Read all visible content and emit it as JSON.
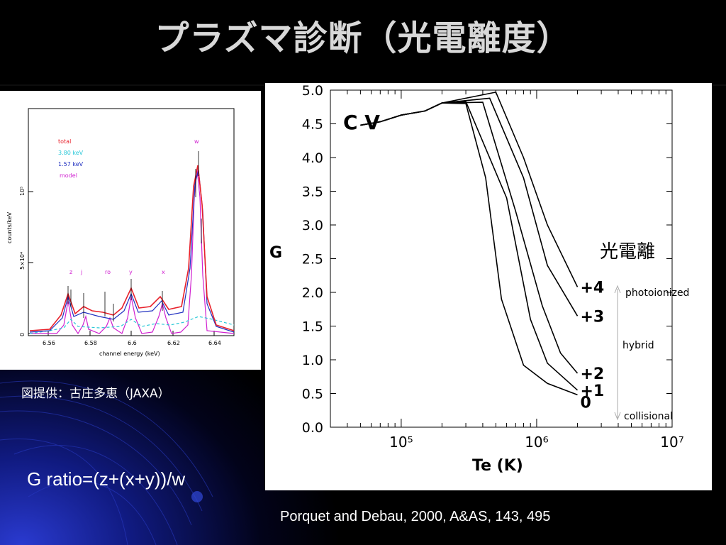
{
  "slide": {
    "title": "プラズマ診断（光電離度）",
    "credit": "図提供：古庄多恵（JAXA）",
    "formula": "G ratio=(z+(x+y))/w",
    "reference": "Porquet and Debau, 2000, A&AS, 143, 495",
    "colors": {
      "background": "#000000",
      "accent_blue": "#1e2db4",
      "title": "#d8d8d8"
    }
  },
  "left_figure": {
    "ylabel": "counts/keV",
    "xlabel": "channel energy (keV)",
    "xticks": [
      "6.56",
      "6.58",
      "6.6",
      "6.62",
      "6.64"
    ],
    "yticks": [
      "0",
      "5×10⁴",
      "10⁵"
    ],
    "legend": [
      {
        "label": "total",
        "color": "#e8202a"
      },
      {
        "label": "3.80 keV",
        "color": "#2ac8d8"
      },
      {
        "label": "1.57 keV",
        "color": "#2030c0"
      },
      {
        "label": "model",
        "color": "#d020d0"
      }
    ],
    "line_labels": [
      "z",
      "j",
      "ro",
      "y",
      "x",
      "w"
    ]
  },
  "chart_data": {
    "type": "line",
    "title": "C V",
    "xlabel": "Te (K)",
    "ylabel": "G",
    "x_scale": "log",
    "xlim": [
      30000,
      10000000
    ],
    "ylim": [
      0,
      5
    ],
    "x_tick_labels": [
      "10⁵",
      "10⁶",
      "10⁷"
    ],
    "y_tick_labels": [
      "0.0",
      "0.5",
      "1.0",
      "1.5",
      "2.0",
      "2.5",
      "3.0",
      "3.5",
      "4.0",
      "4.5",
      "5.0"
    ],
    "series": [
      {
        "name": "0",
        "points": [
          [
            50000,
            4.48
          ],
          [
            70000,
            4.53
          ],
          [
            100000,
            4.63
          ],
          [
            150000,
            4.69
          ],
          [
            200000,
            4.81
          ],
          [
            300000,
            4.8
          ],
          [
            420000,
            3.7
          ],
          [
            550000,
            1.9
          ],
          [
            800000,
            0.92
          ],
          [
            1200000,
            0.65
          ],
          [
            2000000,
            0.48
          ]
        ]
      },
      {
        "name": "+1",
        "points": [
          [
            50000,
            4.48
          ],
          [
            70000,
            4.53
          ],
          [
            100000,
            4.63
          ],
          [
            150000,
            4.69
          ],
          [
            200000,
            4.81
          ],
          [
            300000,
            4.83
          ],
          [
            600000,
            3.4
          ],
          [
            900000,
            1.6
          ],
          [
            1200000,
            0.95
          ],
          [
            2000000,
            0.55
          ]
        ]
      },
      {
        "name": "+2",
        "points": [
          [
            50000,
            4.48
          ],
          [
            70000,
            4.53
          ],
          [
            100000,
            4.63
          ],
          [
            150000,
            4.69
          ],
          [
            200000,
            4.81
          ],
          [
            400000,
            4.82
          ],
          [
            700000,
            3.2
          ],
          [
            1100000,
            1.8
          ],
          [
            1500000,
            1.1
          ],
          [
            2000000,
            0.8
          ]
        ]
      },
      {
        "name": "+3",
        "points": [
          [
            50000,
            4.48
          ],
          [
            70000,
            4.53
          ],
          [
            100000,
            4.63
          ],
          [
            150000,
            4.69
          ],
          [
            200000,
            4.81
          ],
          [
            450000,
            4.88
          ],
          [
            800000,
            3.7
          ],
          [
            1200000,
            2.4
          ],
          [
            2000000,
            1.65
          ]
        ]
      },
      {
        "name": "+4",
        "points": [
          [
            50000,
            4.48
          ],
          [
            70000,
            4.53
          ],
          [
            100000,
            4.63
          ],
          [
            150000,
            4.69
          ],
          [
            200000,
            4.81
          ],
          [
            500000,
            4.97
          ],
          [
            800000,
            4.0
          ],
          [
            1200000,
            3.0
          ],
          [
            2000000,
            2.08
          ]
        ]
      }
    ],
    "annotations": {
      "photoionization": "光電離",
      "regimes": [
        "photoionized",
        "hybrid",
        "collisional"
      ]
    }
  }
}
